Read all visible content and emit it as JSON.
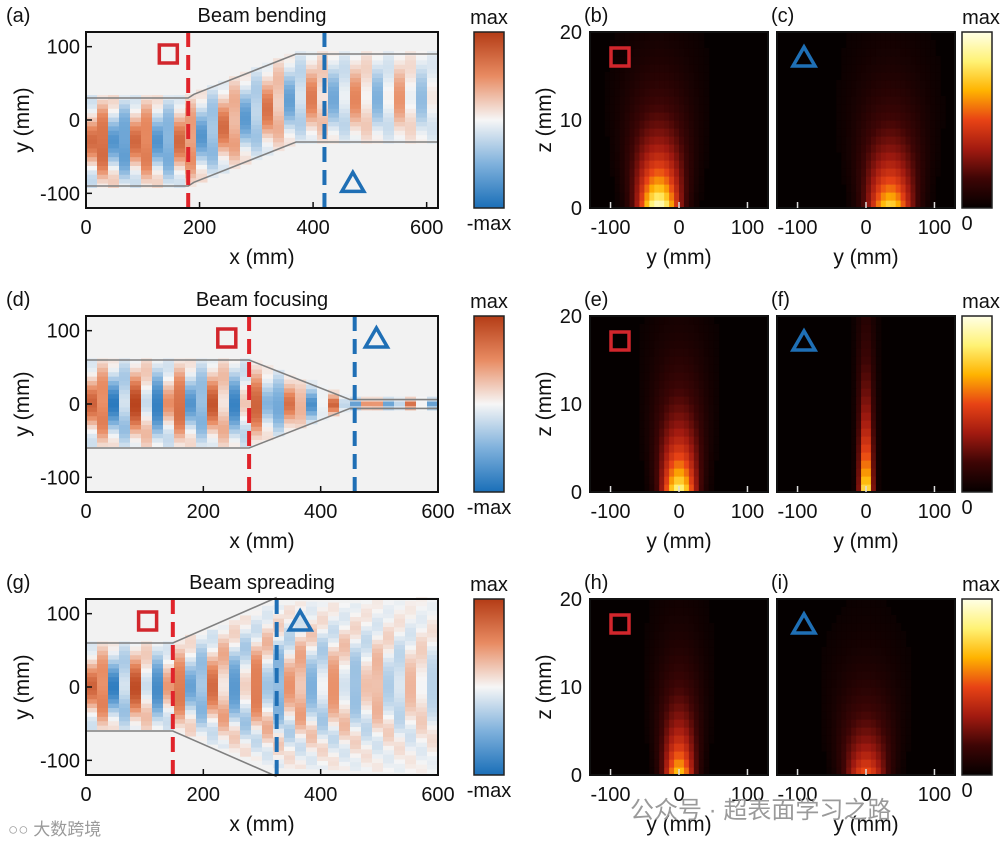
{
  "chart_data": {
    "type": "heatmap",
    "colors": {
      "dash_red": "#e0242b",
      "dash_blue": "#1f6fb5",
      "marker_red": "#d2262c",
      "marker_blue": "#1f6fb5"
    },
    "colorbars": {
      "field": {
        "top": "max",
        "bottom": "-max",
        "stops": [
          "#b43c16",
          "#e88b62",
          "#f6f6f6",
          "#7fb1dc",
          "#1a6fb8"
        ]
      },
      "intensity": {
        "top": "max",
        "bottom": "0",
        "stops": [
          "#ffffe6",
          "#fff275",
          "#ffb300",
          "#e84315",
          "#a11a10",
          "#3d0505",
          "#050000"
        ]
      }
    },
    "rows": [
      {
        "title": "Beam bending",
        "field": {
          "label": "(a)",
          "xlabel": "x (mm)",
          "ylabel": "y (mm)",
          "xlim": [
            0,
            620
          ],
          "ylim": [
            -120,
            120
          ],
          "xticks": [
            "0",
            "200",
            "400",
            "600"
          ],
          "yticks": [
            "100",
            "0",
            "-100"
          ],
          "dash_red_x": 180,
          "dash_blue_x": 420,
          "square_pos": [
            145,
            90
          ],
          "triangle_pos": [
            470,
            -85
          ],
          "upper_wall": [
            [
              0,
              30
            ],
            [
              180,
              30
            ],
            [
              190,
              35
            ],
            [
              370,
              90
            ],
            [
              620,
              90
            ]
          ],
          "lower_wall": [
            [
              0,
              -90
            ],
            [
              180,
              -90
            ],
            [
              190,
              -85
            ],
            [
              370,
              -30
            ],
            [
              620,
              -30
            ]
          ],
          "beam_center": [
            [
              0,
              -30
            ],
            [
              180,
              -30
            ],
            [
              370,
              30
            ],
            [
              620,
              30
            ]
          ],
          "beam_halfwidth": [
            [
              0,
              62
            ],
            [
              180,
              62
            ],
            [
              620,
              62
            ]
          ],
          "amp_decay": 0.6
        },
        "profiles": [
          {
            "label": "(b)",
            "marker": "square",
            "xlabel": "y (mm)",
            "ylabel": "z (mm)",
            "xlim": [
              -130,
              130
            ],
            "ylim": [
              0,
              20
            ],
            "xticks": [
              "-100",
              "0",
              "100"
            ],
            "yticks": [
              "20",
              "10",
              "0"
            ],
            "center_y": -30,
            "peak": 1.0,
            "width": 30,
            "spread": 0.75
          },
          {
            "label": "(c)",
            "marker": "triangle",
            "xlabel": "y (mm)",
            "ylabel": "",
            "xlim": [
              -130,
              130
            ],
            "ylim": [
              0,
              20
            ],
            "xticks": [
              "-100",
              "0",
              "100"
            ],
            "yticks": [],
            "center_y": 35,
            "peak": 0.8,
            "width": 32,
            "spread": 0.75
          }
        ]
      },
      {
        "title": "Beam focusing",
        "field": {
          "label": "(d)",
          "xlabel": "x (mm)",
          "ylabel": "y (mm)",
          "xlim": [
            0,
            600
          ],
          "ylim": [
            -120,
            120
          ],
          "xticks": [
            "0",
            "200",
            "400",
            "600"
          ],
          "yticks": [
            "100",
            "0",
            "-100"
          ],
          "dash_red_x": 278,
          "dash_blue_x": 458,
          "square_pos": [
            240,
            90
          ],
          "triangle_pos": [
            495,
            90
          ],
          "upper_wall": [
            [
              0,
              60
            ],
            [
              278,
              60
            ],
            [
              450,
              6
            ],
            [
              600,
              6
            ]
          ],
          "lower_wall": [
            [
              0,
              -60
            ],
            [
              278,
              -60
            ],
            [
              450,
              -6
            ],
            [
              600,
              -6
            ]
          ],
          "beam_center": [
            [
              0,
              0
            ],
            [
              600,
              0
            ]
          ],
          "beam_halfwidth": [
            [
              0,
              58
            ],
            [
              278,
              58
            ],
            [
              450,
              8
            ],
            [
              600,
              8
            ]
          ],
          "amp_decay": 0.35
        },
        "profiles": [
          {
            "label": "(e)",
            "marker": "square",
            "xlabel": "y (mm)",
            "ylabel": "z (mm)",
            "xlim": [
              -130,
              130
            ],
            "ylim": [
              0,
              20
            ],
            "xticks": [
              "-100",
              "0",
              "100"
            ],
            "yticks": [
              "20",
              "10",
              "0"
            ],
            "center_y": 0,
            "peak": 0.9,
            "width": 25,
            "spread": 0.65
          },
          {
            "label": "(f)",
            "marker": "triangle",
            "xlabel": "y (mm)",
            "ylabel": "",
            "xlim": [
              -130,
              130
            ],
            "ylim": [
              0,
              20
            ],
            "xticks": [
              "-100",
              "0",
              "100"
            ],
            "yticks": [],
            "center_y": 0,
            "peak": 0.9,
            "width": 10,
            "spread": 0.3
          }
        ]
      },
      {
        "title": "Beam spreading",
        "field": {
          "label": "(g)",
          "xlabel": "x (mm)",
          "ylabel": "y (mm)",
          "xlim": [
            0,
            600
          ],
          "ylim": [
            -120,
            120
          ],
          "xticks": [
            "0",
            "200",
            "400",
            "600"
          ],
          "yticks": [
            "100",
            "0",
            "-100"
          ],
          "dash_red_x": 148,
          "dash_blue_x": 325,
          "square_pos": [
            105,
            90
          ],
          "triangle_pos": [
            365,
            90
          ],
          "upper_wall": [
            [
              0,
              60
            ],
            [
              148,
              60
            ],
            [
              325,
              122
            ]
          ],
          "lower_wall": [
            [
              0,
              -60
            ],
            [
              148,
              -60
            ],
            [
              325,
              -122
            ]
          ],
          "beam_center": [
            [
              0,
              0
            ],
            [
              600,
              0
            ]
          ],
          "beam_halfwidth": [
            [
              0,
              58
            ],
            [
              148,
              58
            ],
            [
              325,
              110
            ],
            [
              600,
              118
            ]
          ],
          "amp_decay": 0.75
        },
        "profiles": [
          {
            "label": "(h)",
            "marker": "square",
            "xlabel": "y (mm)",
            "ylabel": "z (mm)",
            "xlim": [
              -130,
              130
            ],
            "ylim": [
              0,
              20
            ],
            "xticks": [
              "-100",
              "0",
              "100"
            ],
            "yticks": [
              "20",
              "10",
              "0"
            ],
            "center_y": 0,
            "peak": 0.75,
            "width": 22,
            "spread": 0.7
          },
          {
            "label": "(i)",
            "marker": "triangle",
            "xlabel": "y (mm)",
            "ylabel": "",
            "xlim": [
              -130,
              130
            ],
            "ylim": [
              0,
              20
            ],
            "xticks": [
              "-100",
              "0",
              "100"
            ],
            "yticks": [],
            "center_y": 0,
            "peak": 0.55,
            "width": 30,
            "spread": 0.85
          }
        ]
      }
    ]
  },
  "watermarks": {
    "left": "大数跨境",
    "right": "公众号 · 超表面学习之路"
  }
}
